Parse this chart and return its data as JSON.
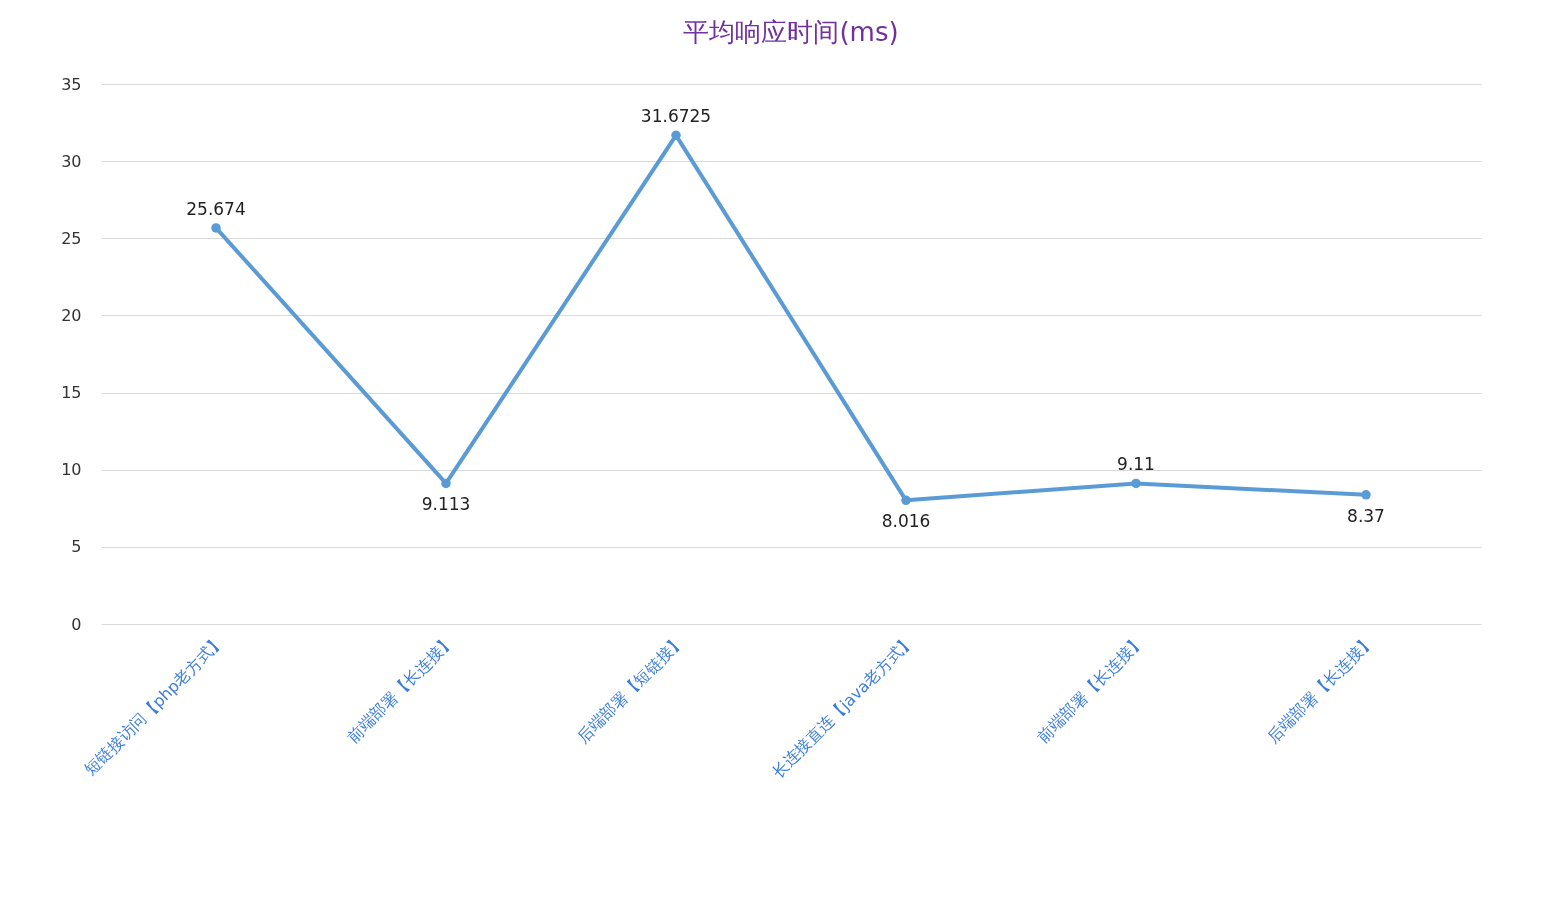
{
  "chart_data": {
    "type": "line",
    "title": "平均响应时间(ms)",
    "categories": [
      "短链接访问【php老方式】",
      "前端部署【长连接】",
      "后端部署【短链接】",
      "长连接直连【java老方式】",
      "前端部署【长连接】",
      "后端部署【长连接】"
    ],
    "series": [
      {
        "color": "#5b9bd5",
        "values": [
          25.674,
          9.113,
          31.6725,
          8.016,
          9.11,
          8.37
        ]
      }
    ],
    "ylim": [
      0,
      35
    ],
    "yticks": [
      0,
      5,
      10,
      15,
      20,
      25,
      30,
      35
    ],
    "grid": "y",
    "marker": "circle",
    "line_style": "solid",
    "data_labels": true
  }
}
